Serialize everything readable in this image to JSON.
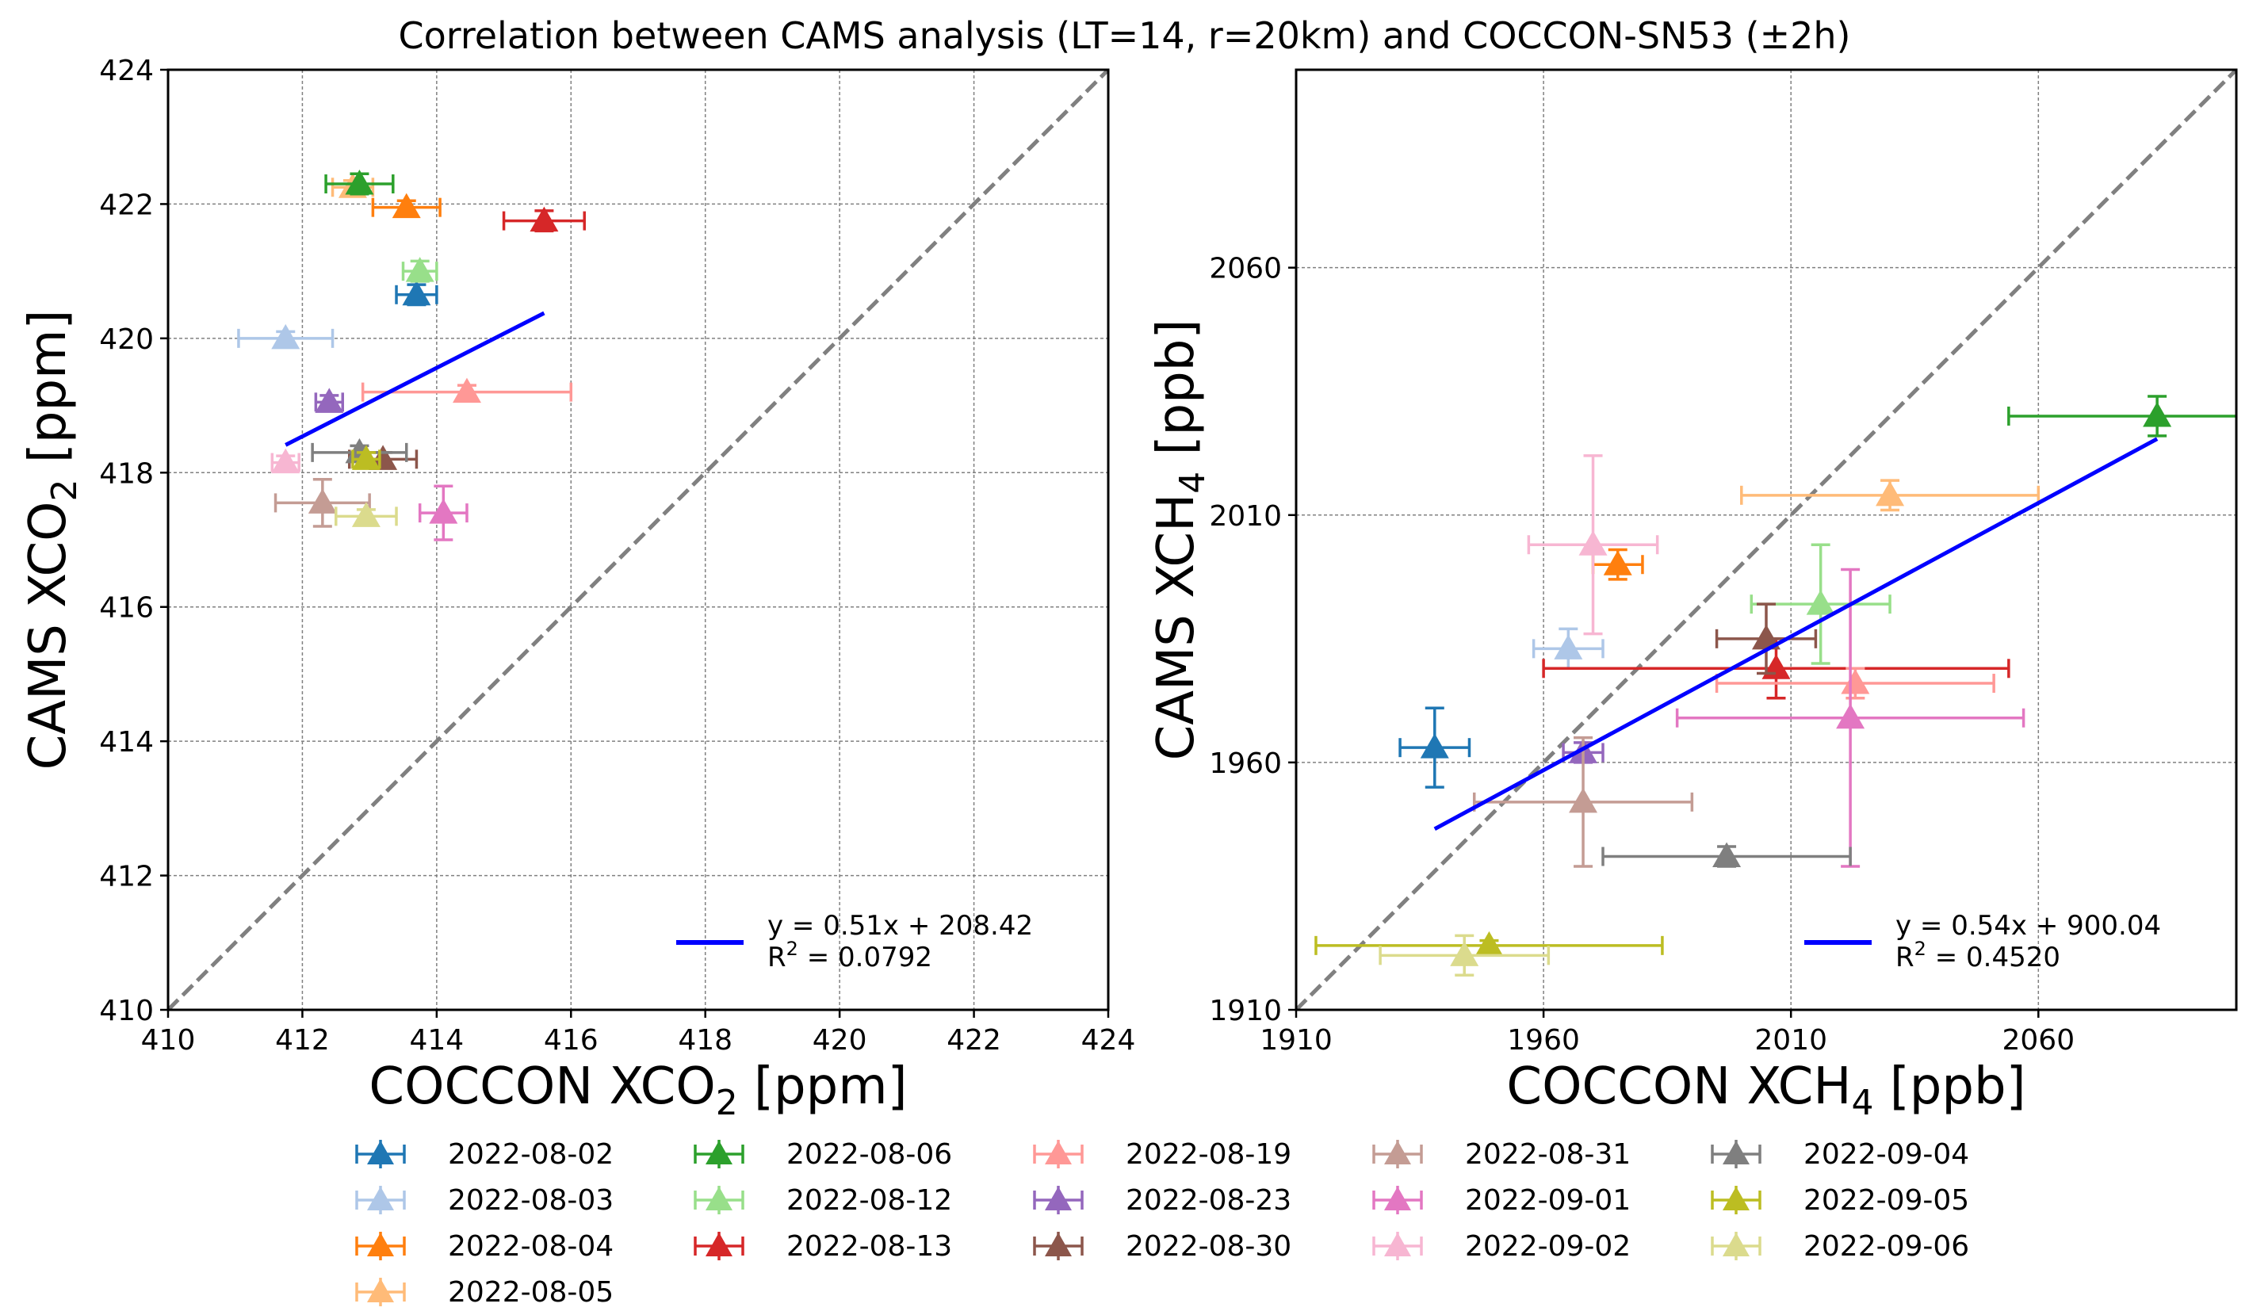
{
  "title": "Correlation between CAMS analysis (LT=14, r=20km) and COCCON-SN53 (±2h)",
  "colors": {
    "2022-08-02": "#1f77b4",
    "2022-08-03": "#aec7e8",
    "2022-08-04": "#ff7f0e",
    "2022-08-05": "#ffbb78",
    "2022-08-06": "#2ca02c",
    "2022-08-12": "#98df8a",
    "2022-08-13": "#d62728",
    "2022-08-19": "#ff9896",
    "2022-08-23": "#9467bd",
    "2022-08-30": "#8c564b",
    "2022-08-31": "#c49c94",
    "2022-09-01": "#e377c2",
    "2022-09-02": "#f7b6d2",
    "2022-09-04": "#7f7f7f",
    "2022-09-05": "#bcbd22",
    "2022-09-06": "#dbdb8d",
    "fit_line": "#0000ff",
    "identity_line": "#808080",
    "grid": "#808080"
  },
  "legend_dates": [
    "2022-08-02",
    "2022-08-03",
    "2022-08-04",
    "2022-08-05",
    "2022-08-06",
    "2022-08-12",
    "2022-08-13",
    "2022-08-19",
    "2022-08-23",
    "2022-08-30",
    "2022-08-31",
    "2022-09-01",
    "2022-09-02",
    "2022-09-04",
    "2022-09-05",
    "2022-09-06"
  ],
  "chart_data": [
    {
      "type": "scatter",
      "xlabel_main": "COCCON XCO",
      "xlabel_sub": "2",
      "xlabel_unit": " [ppm]",
      "ylabel_main": "CAMS XCO",
      "ylabel_sub": "2",
      "ylabel_unit": " [ppm]",
      "xlim": [
        410,
        424
      ],
      "ylim": [
        410,
        424
      ],
      "xticks": [
        410,
        412,
        414,
        416,
        418,
        420,
        422,
        424
      ],
      "yticks": [
        410,
        412,
        414,
        416,
        418,
        420,
        422,
        424
      ],
      "fit_label": "y = 0.51x + 208.42",
      "r2_label": "R",
      "r2_sup": "2",
      "r2_value": " = 0.0792",
      "fit": {
        "slope": 0.51,
        "intercept": 208.42,
        "x_range": [
          411.75,
          415.6
        ]
      },
      "points": [
        {
          "date": "2022-08-02",
          "x": 413.7,
          "y": 420.65,
          "xerr": 0.3,
          "yerr": 0.15
        },
        {
          "date": "2022-08-03",
          "x": 411.75,
          "y": 420.0,
          "xerr": 0.7,
          "yerr": 0.1
        },
        {
          "date": "2022-08-04",
          "x": 413.55,
          "y": 421.95,
          "xerr": 0.5,
          "yerr": 0.1
        },
        {
          "date": "2022-08-05",
          "x": 412.75,
          "y": 422.25,
          "xerr": 0.3,
          "yerr": 0.1
        },
        {
          "date": "2022-08-06",
          "x": 412.85,
          "y": 422.3,
          "xerr": 0.5,
          "yerr": 0.15
        },
        {
          "date": "2022-08-12",
          "x": 413.75,
          "y": 421.0,
          "xerr": 0.25,
          "yerr": 0.15
        },
        {
          "date": "2022-08-13",
          "x": 415.6,
          "y": 421.75,
          "xerr": 0.6,
          "yerr": 0.15
        },
        {
          "date": "2022-08-19",
          "x": 414.45,
          "y": 419.2,
          "xerr": 1.55,
          "yerr": 0.1
        },
        {
          "date": "2022-08-23",
          "x": 412.4,
          "y": 419.05,
          "xerr": 0.2,
          "yerr": 0.1
        },
        {
          "date": "2022-08-30",
          "x": 413.2,
          "y": 418.2,
          "xerr": 0.5,
          "yerr": 0.1
        },
        {
          "date": "2022-08-31",
          "x": 412.3,
          "y": 417.55,
          "xerr": 0.7,
          "yerr": 0.35
        },
        {
          "date": "2022-09-01",
          "x": 414.1,
          "y": 417.4,
          "xerr": 0.35,
          "yerr": 0.4
        },
        {
          "date": "2022-09-02",
          "x": 411.75,
          "y": 418.15,
          "xerr": 0.2,
          "yerr": 0.1
        },
        {
          "date": "2022-09-04",
          "x": 412.85,
          "y": 418.3,
          "xerr": 0.7,
          "yerr": 0.1
        },
        {
          "date": "2022-09-05",
          "x": 412.95,
          "y": 418.2,
          "xerr": 0.2,
          "yerr": 0.1
        },
        {
          "date": "2022-09-06",
          "x": 412.95,
          "y": 417.35,
          "xerr": 0.45,
          "yerr": 0.1
        }
      ]
    },
    {
      "type": "scatter",
      "xlabel_main": "COCCON XCH",
      "xlabel_sub": "4",
      "xlabel_unit": " [ppb]",
      "ylabel_main": "CAMS XCH",
      "ylabel_sub": "4",
      "ylabel_unit": " [ppb]",
      "xlim": [
        1910,
        2100
      ],
      "ylim": [
        1910,
        2100
      ],
      "xticks": [
        1910,
        1960,
        2010,
        2060
      ],
      "yticks": [
        1910,
        1960,
        2010,
        2060
      ],
      "fit_label": "y = 0.54x + 900.04",
      "r2_label": "R",
      "r2_sup": "2",
      "r2_value": " = 0.4520",
      "fit": {
        "slope": 0.54,
        "intercept": 900.04,
        "x_range": [
          1938,
          2084
        ]
      },
      "points": [
        {
          "date": "2022-08-02",
          "x": 1938,
          "y": 1963,
          "xerr": 7,
          "yerr": 8
        },
        {
          "date": "2022-08-03",
          "x": 1965,
          "y": 1983,
          "xerr": 7,
          "yerr": 4
        },
        {
          "date": "2022-08-04",
          "x": 1975,
          "y": 2000,
          "xerr": 5,
          "yerr": 3
        },
        {
          "date": "2022-08-05",
          "x": 2030,
          "y": 2014,
          "xerr": 30,
          "yerr": 3
        },
        {
          "date": "2022-08-06",
          "x": 2084,
          "y": 2030,
          "xerr": 30,
          "yerr": 4
        },
        {
          "date": "2022-08-12",
          "x": 2016,
          "y": 1992,
          "xerr": 14,
          "yerr": 12
        },
        {
          "date": "2022-08-13",
          "x": 2007,
          "y": 1979,
          "xerr": 47,
          "yerr": 6
        },
        {
          "date": "2022-08-19",
          "x": 2023,
          "y": 1976,
          "xerr": 28,
          "yerr": 3
        },
        {
          "date": "2022-08-23",
          "x": 1968,
          "y": 1962,
          "xerr": 4,
          "yerr": 2
        },
        {
          "date": "2022-08-30",
          "x": 2005,
          "y": 1985,
          "xerr": 10,
          "yerr": 7
        },
        {
          "date": "2022-08-31",
          "x": 1968,
          "y": 1952,
          "xerr": 22,
          "yerr": 13
        },
        {
          "date": "2022-09-01",
          "x": 2022,
          "y": 1969,
          "xerr": 35,
          "yerr": 30
        },
        {
          "date": "2022-09-02",
          "x": 1970,
          "y": 2004,
          "xerr": 13,
          "yerr": 18
        },
        {
          "date": "2022-09-04",
          "x": 1997,
          "y": 1941,
          "xerr": 25,
          "yerr": 2
        },
        {
          "date": "2022-09-05",
          "x": 1949,
          "y": 1923,
          "xerr": 35,
          "yerr": 1
        },
        {
          "date": "2022-09-06",
          "x": 1944,
          "y": 1921,
          "xerr": 17,
          "yerr": 4
        }
      ]
    }
  ]
}
